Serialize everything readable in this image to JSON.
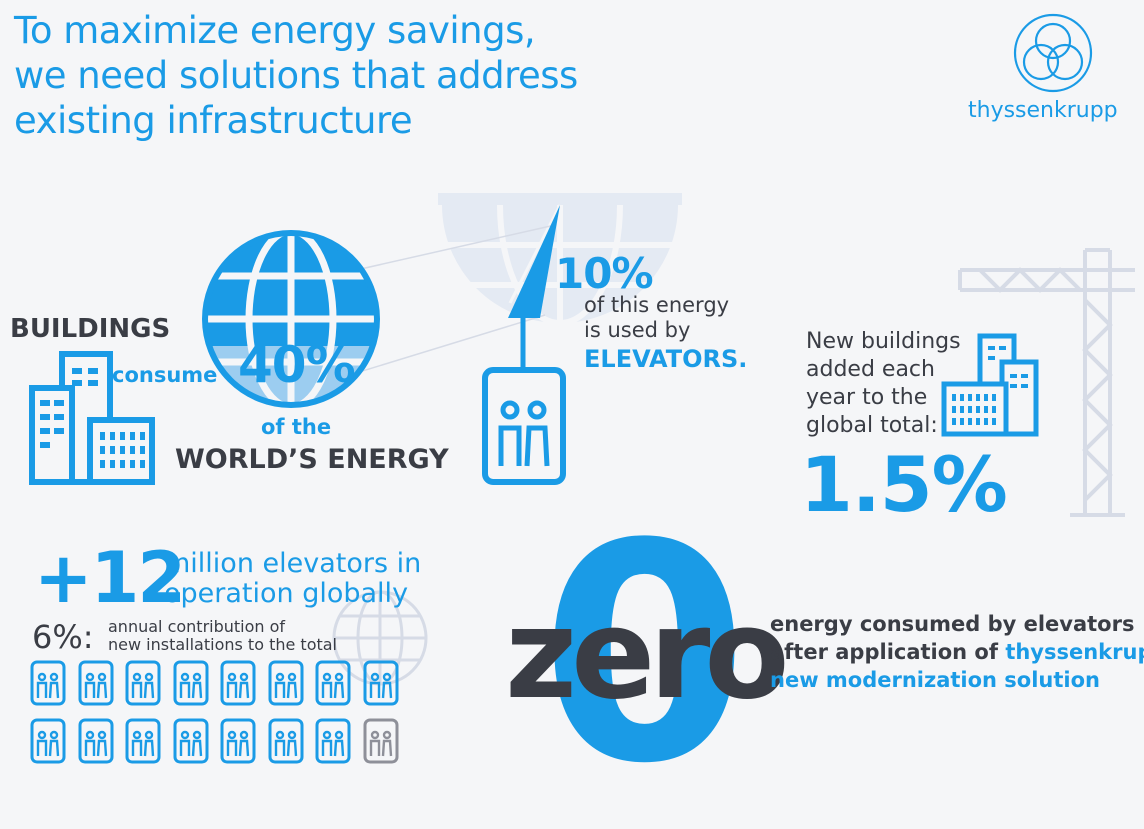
{
  "title": {
    "line1": "To maximize energy savings,",
    "line2": "we need solutions that address",
    "line3": "existing infrastructure"
  },
  "brand": {
    "name": "thyssenkrupp",
    "logo_icon": "thyssenkrupp-rings-logo-icon"
  },
  "buildings": {
    "label": "BUILDINGS",
    "verb": "consume",
    "percent": "40%",
    "of_the": "of the",
    "target": "WORLD’S ENERGY"
  },
  "elevators_share": {
    "percent": "10%",
    "line1": "of this energy",
    "line2": "is used by",
    "target": "ELEVATORS."
  },
  "new_buildings": {
    "line1": "New buildings",
    "line2": "added each",
    "line3": "year to the",
    "line4": "global total:",
    "percent": "1.5%"
  },
  "elevator_count": {
    "number": "+12",
    "line1": "million elevators in",
    "line2": "operation globally",
    "share": "6%:",
    "share_line1": "annual contribution of",
    "share_line2": "new installations to the total",
    "icons_total": 16,
    "icons_highlighted": 15
  },
  "zero": {
    "word": "zero",
    "digit": "0",
    "line1": "energy consumed by elevators",
    "line2_prefix": "after application of ",
    "line2_brand": "thyssenkrupp’s",
    "line3": "new modernization solution"
  },
  "colors": {
    "accent": "#1a9be6",
    "dark": "#3a3d45",
    "light_gray": "#d6dbe6",
    "muted_icon": "#8e9099"
  }
}
